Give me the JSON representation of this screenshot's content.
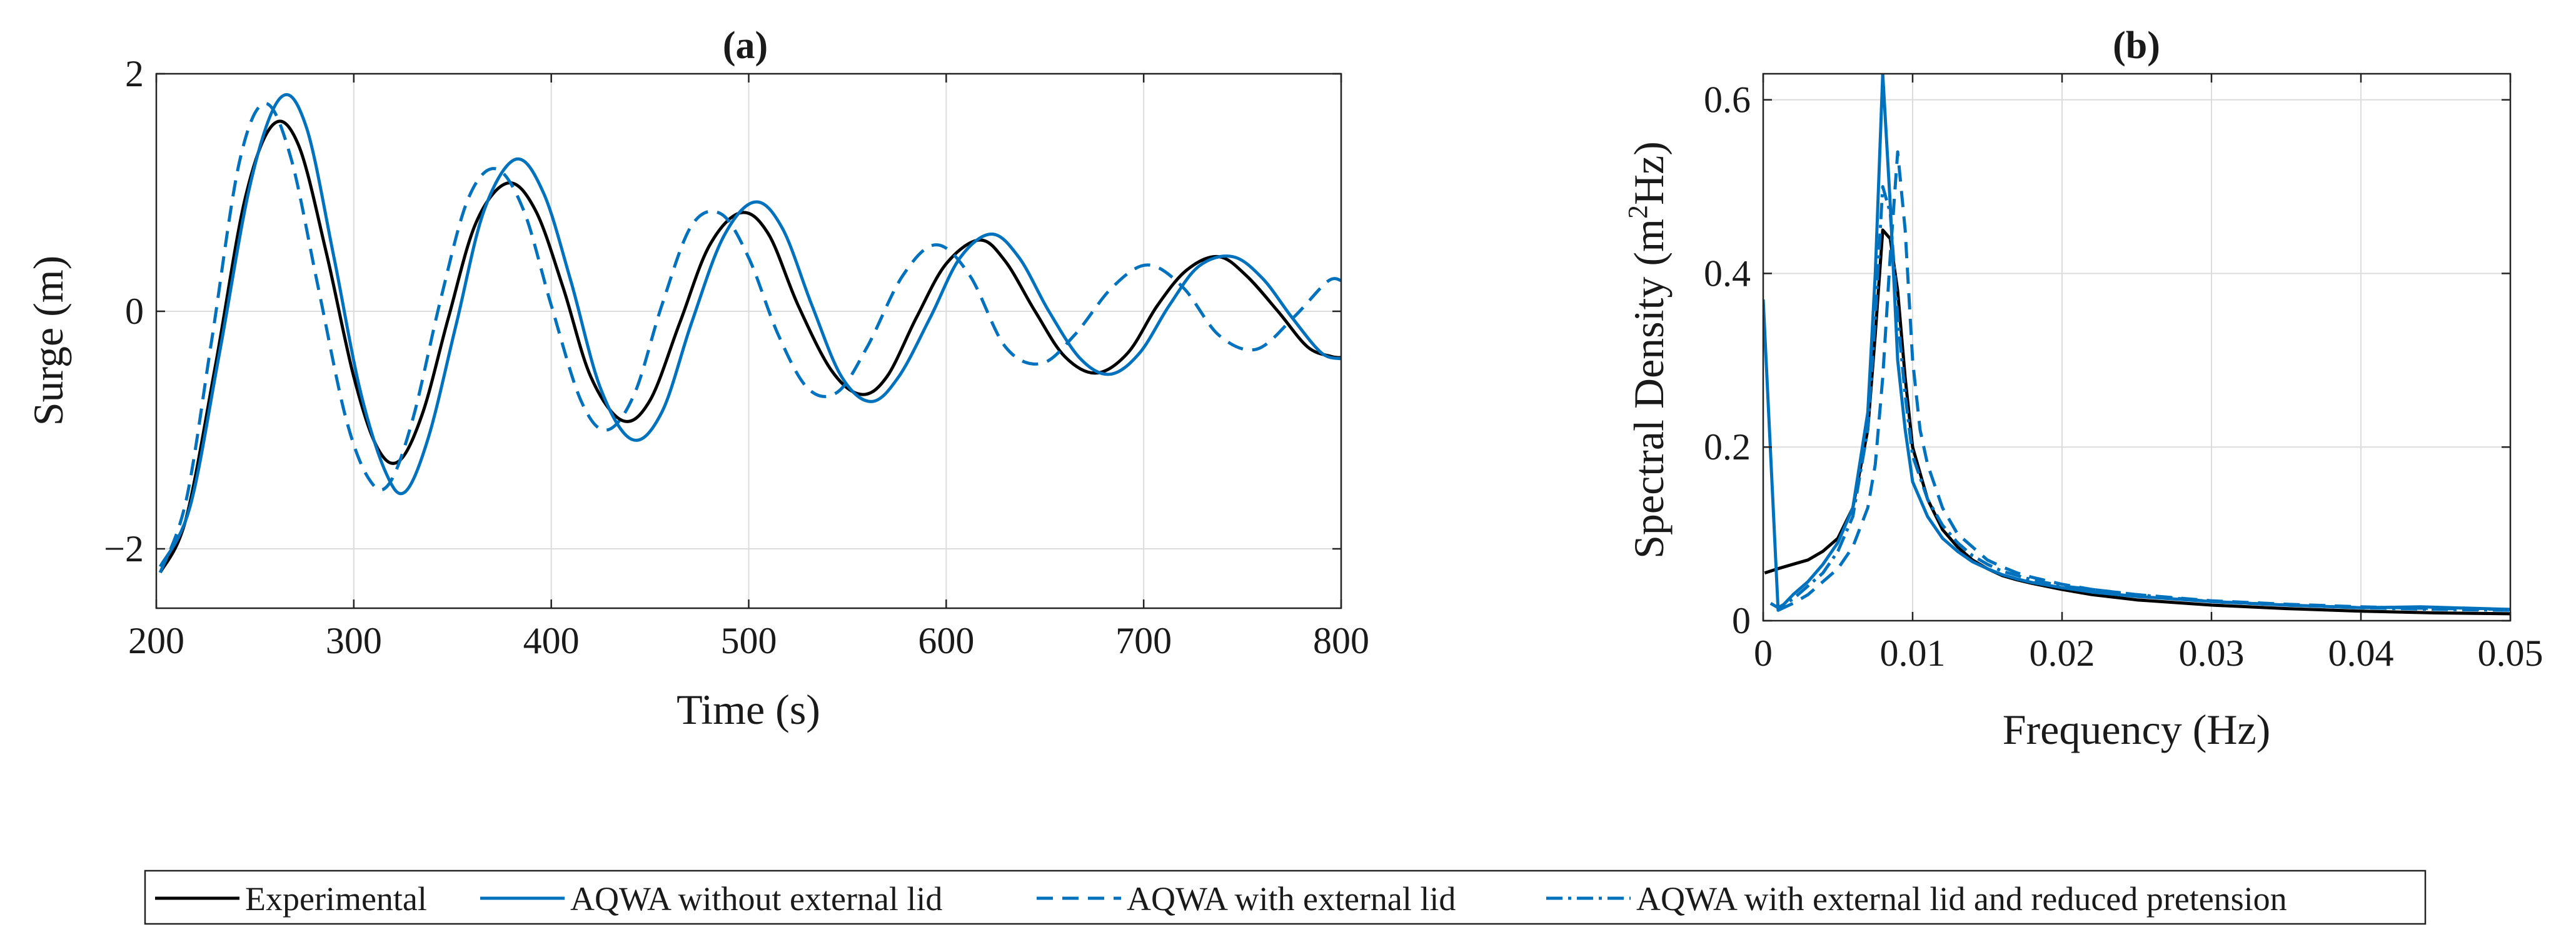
{
  "chart_data": [
    {
      "type": "line",
      "title": "(a)",
      "xlabel": "Time (s)",
      "ylabel": "Surge (m)",
      "xlim": [
        200,
        800
      ],
      "ylim": [
        -2.5,
        2
      ],
      "xticks": [
        200,
        300,
        400,
        500,
        600,
        700,
        800
      ],
      "xtick_labels": [
        "200",
        "300",
        "400",
        "500",
        "600",
        "700",
        "800"
      ],
      "yticks": [
        -2,
        0,
        2
      ],
      "ytick_labels": [
        "−2",
        "0",
        "2"
      ],
      "grid": true,
      "series": [
        {
          "name": "Experimental",
          "x": [
            202,
            215,
            230,
            245,
            259,
            272,
            286,
            300,
            312,
            323,
            335,
            348,
            362,
            378,
            392,
            406,
            420,
            436,
            450,
            465,
            480,
            496,
            510,
            525,
            542,
            557,
            570,
            585,
            600,
            617,
            630,
            645,
            660,
            676,
            692,
            707,
            722,
            738,
            752,
            768,
            783,
            795,
            800
          ],
          "y": [
            -2.2,
            -1.75,
            -0.45,
            0.95,
            1.57,
            1.4,
            0.5,
            -0.55,
            -1.15,
            -1.26,
            -0.85,
            -0.05,
            0.75,
            1.08,
            0.85,
            0.2,
            -0.55,
            -0.92,
            -0.75,
            -0.1,
            0.55,
            0.83,
            0.65,
            0.05,
            -0.5,
            -0.7,
            -0.55,
            -0.05,
            0.4,
            0.6,
            0.42,
            0.0,
            -0.38,
            -0.52,
            -0.35,
            0.05,
            0.35,
            0.46,
            0.3,
            0.0,
            -0.3,
            -0.38,
            -0.39
          ]
        },
        {
          "name": "AQWA without external lid",
          "x": [
            202,
            217,
            232,
            248,
            263,
            276,
            290,
            303,
            316,
            326,
            338,
            352,
            366,
            382,
            396,
            410,
            425,
            441,
            456,
            471,
            487,
            503,
            517,
            532,
            547,
            562,
            576,
            592,
            607,
            623,
            637,
            652,
            668,
            683,
            698,
            713,
            728,
            745,
            760,
            775,
            790,
            800
          ],
          "y": [
            -2.15,
            -1.65,
            -0.35,
            1.1,
            1.8,
            1.55,
            0.45,
            -0.65,
            -1.35,
            -1.52,
            -1.05,
            -0.1,
            0.85,
            1.28,
            1.0,
            0.25,
            -0.65,
            -1.08,
            -0.85,
            -0.1,
            0.62,
            0.92,
            0.7,
            0.05,
            -0.55,
            -0.76,
            -0.55,
            -0.05,
            0.45,
            0.65,
            0.45,
            0.0,
            -0.4,
            -0.53,
            -0.35,
            0.05,
            0.38,
            0.46,
            0.28,
            -0.05,
            -0.35,
            -0.4
          ]
        },
        {
          "name": "AQWA with external lid",
          "x": [
            202,
            215,
            228,
            242,
            255,
            268,
            282,
            296,
            308,
            318,
            330,
            344,
            358,
            372,
            386,
            400,
            415,
            428,
            442,
            456,
            471,
            486,
            500,
            515,
            530,
            545,
            560,
            578,
            595,
            612,
            630,
            648,
            665,
            684,
            702,
            720,
            738,
            757,
            776,
            793,
            800
          ],
          "y": [
            -2.2,
            -1.6,
            -0.25,
            1.25,
            1.75,
            1.3,
            0.2,
            -0.9,
            -1.42,
            -1.45,
            -0.9,
            0.1,
            0.95,
            1.2,
            0.85,
            0.05,
            -0.75,
            -1.0,
            -0.7,
            0.05,
            0.72,
            0.82,
            0.45,
            -0.2,
            -0.65,
            -0.68,
            -0.3,
            0.3,
            0.56,
            0.3,
            -0.3,
            -0.44,
            -0.2,
            0.2,
            0.39,
            0.2,
            -0.2,
            -0.32,
            -0.05,
            0.25,
            0.26
          ]
        }
      ]
    },
    {
      "type": "line",
      "title": "(b)",
      "xlabel": "Frequency (Hz)",
      "ylabel": "Spectral Density (m²Hz)",
      "ylabel_parts": [
        "Spectral Density (m",
        "2",
        "Hz)"
      ],
      "xlim": [
        0,
        0.05
      ],
      "ylim": [
        0,
        0.63
      ],
      "xticks": [
        0,
        0.01,
        0.02,
        0.03,
        0.04,
        0.05
      ],
      "xtick_labels": [
        "0",
        "0.01",
        "0.02",
        "0.03",
        "0.04",
        "0.05"
      ],
      "yticks": [
        0,
        0.2,
        0.4,
        0.6
      ],
      "ytick_labels": [
        "0",
        "0.2",
        "0.4",
        "0.6"
      ],
      "grid": true,
      "series": [
        {
          "name": "Experimental",
          "x": [
            0.0001,
            0.001,
            0.002,
            0.003,
            0.004,
            0.005,
            0.006,
            0.007,
            0.0075,
            0.008,
            0.0085,
            0.009,
            0.0095,
            0.01,
            0.011,
            0.012,
            0.013,
            0.014,
            0.015,
            0.016,
            0.017,
            0.018,
            0.02,
            0.022,
            0.025,
            0.03,
            0.035,
            0.04,
            0.045,
            0.05
          ],
          "y": [
            0.055,
            0.06,
            0.065,
            0.07,
            0.08,
            0.095,
            0.13,
            0.22,
            0.33,
            0.45,
            0.44,
            0.38,
            0.28,
            0.2,
            0.14,
            0.105,
            0.085,
            0.07,
            0.06,
            0.052,
            0.047,
            0.043,
            0.036,
            0.03,
            0.024,
            0.018,
            0.014,
            0.011,
            0.009,
            0.008
          ]
        },
        {
          "name": "AQWA without external lid",
          "x": [
            0,
            0.001,
            0.002,
            0.003,
            0.004,
            0.005,
            0.006,
            0.007,
            0.0075,
            0.008,
            0.0085,
            0.009,
            0.0095,
            0.01,
            0.011,
            0.012,
            0.013,
            0.014,
            0.015,
            0.016,
            0.017,
            0.018,
            0.02,
            0.022,
            0.025,
            0.03,
            0.035,
            0.04,
            0.044,
            0.05
          ],
          "y": [
            0.37,
            0.012,
            0.03,
            0.045,
            0.065,
            0.09,
            0.13,
            0.24,
            0.4,
            0.63,
            0.48,
            0.3,
            0.22,
            0.16,
            0.12,
            0.095,
            0.08,
            0.068,
            0.06,
            0.053,
            0.048,
            0.044,
            0.038,
            0.033,
            0.028,
            0.022,
            0.018,
            0.015,
            0.016,
            0.013
          ]
        },
        {
          "name": "AQWA with external lid",
          "x": [
            0.001,
            0.002,
            0.003,
            0.004,
            0.005,
            0.006,
            0.007,
            0.0075,
            0.008,
            0.0085,
            0.009,
            0.0095,
            0.01,
            0.0105,
            0.011,
            0.012,
            0.013,
            0.014,
            0.015,
            0.016,
            0.017,
            0.018,
            0.02,
            0.022,
            0.025,
            0.03,
            0.035,
            0.04,
            0.045,
            0.05
          ],
          "y": [
            0.012,
            0.02,
            0.03,
            0.045,
            0.06,
            0.085,
            0.13,
            0.18,
            0.28,
            0.42,
            0.54,
            0.45,
            0.3,
            0.22,
            0.18,
            0.13,
            0.1,
            0.085,
            0.07,
            0.062,
            0.055,
            0.05,
            0.042,
            0.036,
            0.03,
            0.023,
            0.019,
            0.016,
            0.014,
            0.013
          ]
        },
        {
          "name": "AQWA with external lid and reduced pretension",
          "x": [
            0.0005,
            0.001,
            0.002,
            0.003,
            0.004,
            0.005,
            0.006,
            0.007,
            0.0075,
            0.008,
            0.0085,
            0.009,
            0.0095,
            0.01,
            0.011,
            0.012,
            0.013,
            0.014,
            0.015,
            0.016,
            0.018,
            0.02,
            0.025,
            0.03,
            0.035,
            0.04,
            0.045,
            0.05
          ],
          "y": [
            0.02,
            0.015,
            0.025,
            0.04,
            0.055,
            0.08,
            0.12,
            0.22,
            0.35,
            0.5,
            0.47,
            0.35,
            0.26,
            0.19,
            0.14,
            0.11,
            0.09,
            0.075,
            0.065,
            0.057,
            0.047,
            0.04,
            0.03,
            0.022,
            0.018,
            0.015,
            0.013,
            0.012
          ]
        }
      ]
    }
  ],
  "legend": {
    "placement": "bottom-center",
    "items": [
      {
        "label": "Experimental",
        "color": "#000000",
        "dash": "solid"
      },
      {
        "label": "AQWA without external lid",
        "color": "#0072BD",
        "dash": "solid"
      },
      {
        "label": "AQWA with external lid",
        "color": "#0072BD",
        "dash": "dashed"
      },
      {
        "label": "AQWA with external lid and reduced pretension",
        "color": "#0072BD",
        "dash": "dashdot"
      }
    ]
  },
  "colors": {
    "experimental": "#000000",
    "aqwa": "#0072BD"
  }
}
